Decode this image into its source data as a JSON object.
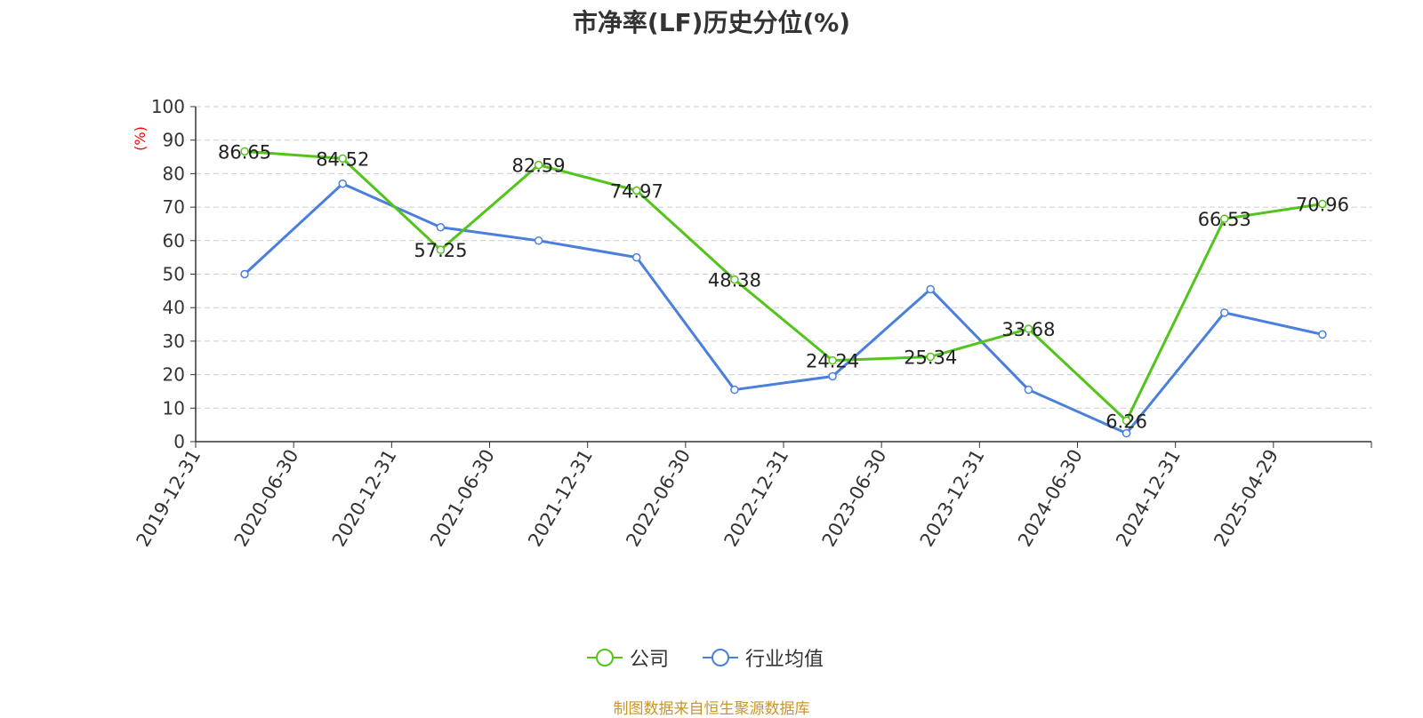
{
  "title": "市净率(LF)历史分位(%)",
  "source_note": "制图数据来自恒生聚源数据库",
  "colors": {
    "company": "#52c41a",
    "industry": "#4a7fdc",
    "axis": "#333333",
    "grid": "#cccccc",
    "unit": "#ff0000"
  },
  "chart_data": {
    "type": "line",
    "title": "市净率(LF)历史分位(%)",
    "y_unit": "(%)",
    "ylim": [
      0,
      100
    ],
    "y_ticks": [
      0,
      10,
      20,
      30,
      40,
      50,
      60,
      70,
      80,
      90,
      100
    ],
    "grid": true,
    "legend_position": "bottom-center",
    "categories": [
      "2019-12-31",
      "2020-06-30",
      "2020-12-31",
      "2021-06-30",
      "2021-12-31",
      "2022-06-30",
      "2022-12-31",
      "2023-06-30",
      "2023-12-31",
      "2024-06-30",
      "2024-12-31",
      "2025-04-29"
    ],
    "series": [
      {
        "name": "公司",
        "color": "#52c41a",
        "values": [
          86.65,
          84.52,
          57.25,
          82.59,
          74.97,
          48.38,
          24.24,
          25.34,
          33.68,
          6.26,
          66.53,
          70.96
        ],
        "labels": [
          "86.65",
          "84.52",
          "57.25",
          "82.59",
          "74.97",
          "48.38",
          "24.24",
          "25.34",
          "33.68",
          "6.26",
          "66.53",
          "70.96"
        ]
      },
      {
        "name": "行业均值",
        "color": "#4a7fdc",
        "values": [
          50,
          77,
          64,
          60,
          55,
          15.5,
          19.5,
          45.5,
          15.5,
          2.5,
          38.5,
          32
        ]
      }
    ]
  }
}
